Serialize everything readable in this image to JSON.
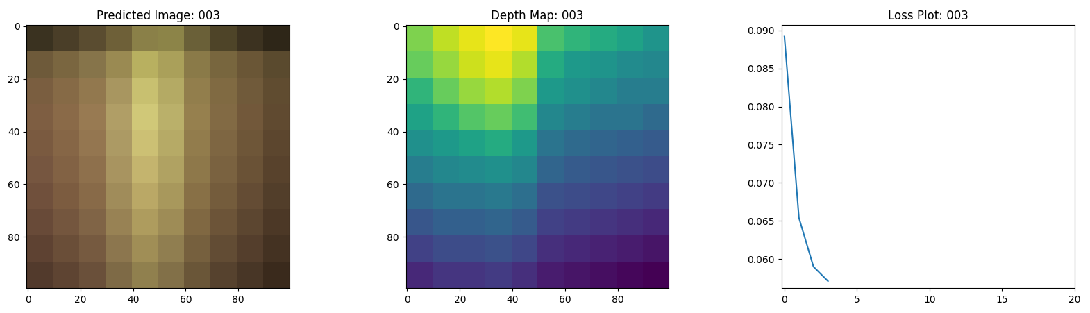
{
  "chart_data": [
    {
      "type": "image",
      "title": "Predicted Image: 003",
      "xlim": [
        -0.5,
        99.5
      ],
      "ylim": [
        99.5,
        -0.5
      ],
      "xticks": [
        0,
        20,
        40,
        60,
        80
      ],
      "yticks": [
        0,
        20,
        40,
        60,
        80
      ],
      "pixels": [
        [
          "#3a3220",
          "#4a3e28",
          "#5a4c30",
          "#6e6038",
          "#8a8048",
          "#8c8448",
          "#6a6038",
          "#4e4428",
          "#3c3220",
          "#2e2618"
        ],
        [
          "#6e5a3a",
          "#7a6640",
          "#86744a",
          "#9a8a52",
          "#b8b060",
          "#aaa05a",
          "#8a7a48",
          "#78663e",
          "#6a5636",
          "#5a4a2e"
        ],
        [
          "#7a5e40",
          "#866a46",
          "#92784e",
          "#a89660",
          "#c8c070",
          "#b4aa64",
          "#927e4c",
          "#806a42",
          "#705a3a",
          "#604c30"
        ],
        [
          "#7e5e42",
          "#8a6a48",
          "#987a52",
          "#b09e66",
          "#d0c878",
          "#bab06a",
          "#96804e",
          "#826a44",
          "#72583a",
          "#604a30"
        ],
        [
          "#7a5a40",
          "#866646",
          "#947650",
          "#ac9a64",
          "#ccc074",
          "#b6aa66",
          "#927c4c",
          "#7e6642",
          "#6e5638",
          "#5c462e"
        ],
        [
          "#765640",
          "#826244",
          "#8e704c",
          "#a89460",
          "#c4b46e",
          "#b0a262",
          "#8e784a",
          "#7a6240",
          "#6a5236",
          "#58422c"
        ],
        [
          "#70503c",
          "#7c5c40",
          "#886a48",
          "#a08c5a",
          "#baa866",
          "#a8985c",
          "#887046",
          "#745c3c",
          "#644c34",
          "#523e2a"
        ],
        [
          "#684a38",
          "#74563e",
          "#806446",
          "#988254",
          "#ae9c5e",
          "#9e8c56",
          "#806842",
          "#6c5438",
          "#5c4630",
          "#4c3826"
        ],
        [
          "#5e4232",
          "#6a4e38",
          "#765a40",
          "#8c764e",
          "#a08e56",
          "#907e50",
          "#76603e",
          "#624c34",
          "#543e2c",
          "#443222"
        ],
        [
          "#523a2c",
          "#5e4432",
          "#6a503a",
          "#7e6a46",
          "#90804e",
          "#827048",
          "#6a5638",
          "#56422e",
          "#483626",
          "#3a2a1c"
        ]
      ]
    },
    {
      "type": "heatmap",
      "title": "Depth Map: 003",
      "color": "viridis",
      "xlim": [
        -0.5,
        99.5
      ],
      "ylim": [
        99.5,
        -0.5
      ],
      "xticks": [
        0,
        20,
        40,
        60,
        80
      ],
      "yticks": [
        0,
        20,
        40,
        60,
        80
      ],
      "cells": [
        [
          0.7,
          0.75,
          0.78,
          0.8,
          0.78,
          0.65,
          0.62,
          0.6,
          0.58,
          0.55
        ],
        [
          0.68,
          0.72,
          0.76,
          0.78,
          0.74,
          0.6,
          0.56,
          0.55,
          0.53,
          0.52
        ],
        [
          0.62,
          0.68,
          0.72,
          0.74,
          0.7,
          0.56,
          0.54,
          0.52,
          0.5,
          0.5
        ],
        [
          0.58,
          0.62,
          0.66,
          0.68,
          0.64,
          0.52,
          0.5,
          0.48,
          0.48,
          0.46
        ],
        [
          0.54,
          0.56,
          0.58,
          0.6,
          0.56,
          0.48,
          0.46,
          0.45,
          0.44,
          0.43
        ],
        [
          0.5,
          0.52,
          0.53,
          0.54,
          0.52,
          0.45,
          0.43,
          0.42,
          0.41,
          0.4
        ],
        [
          0.46,
          0.48,
          0.48,
          0.49,
          0.47,
          0.41,
          0.4,
          0.39,
          0.38,
          0.37
        ],
        [
          0.42,
          0.44,
          0.44,
          0.45,
          0.43,
          0.38,
          0.37,
          0.36,
          0.35,
          0.34
        ],
        [
          0.38,
          0.4,
          0.4,
          0.41,
          0.39,
          0.35,
          0.34,
          0.33,
          0.32,
          0.31
        ],
        [
          0.34,
          0.36,
          0.36,
          0.37,
          0.35,
          0.32,
          0.31,
          0.3,
          0.29,
          0.28
        ]
      ]
    },
    {
      "type": "line",
      "title": "Loss Plot: 003",
      "color": "#1f77b4",
      "x": [
        0,
        1,
        2,
        3
      ],
      "values": [
        0.0892,
        0.0654,
        0.059,
        0.0571
      ],
      "xlim": [
        -0.2,
        20
      ],
      "ylim": [
        0.0562,
        0.0907
      ],
      "xticks": [
        0,
        5,
        10,
        15,
        20
      ],
      "yticks": [
        {
          "value": 0.06,
          "label": "0.060"
        },
        {
          "value": 0.065,
          "label": "0.065"
        },
        {
          "value": 0.07,
          "label": "0.070"
        },
        {
          "value": 0.075,
          "label": "0.075"
        },
        {
          "value": 0.08,
          "label": "0.080"
        },
        {
          "value": 0.085,
          "label": "0.085"
        },
        {
          "value": 0.09,
          "label": "0.090"
        }
      ]
    }
  ]
}
